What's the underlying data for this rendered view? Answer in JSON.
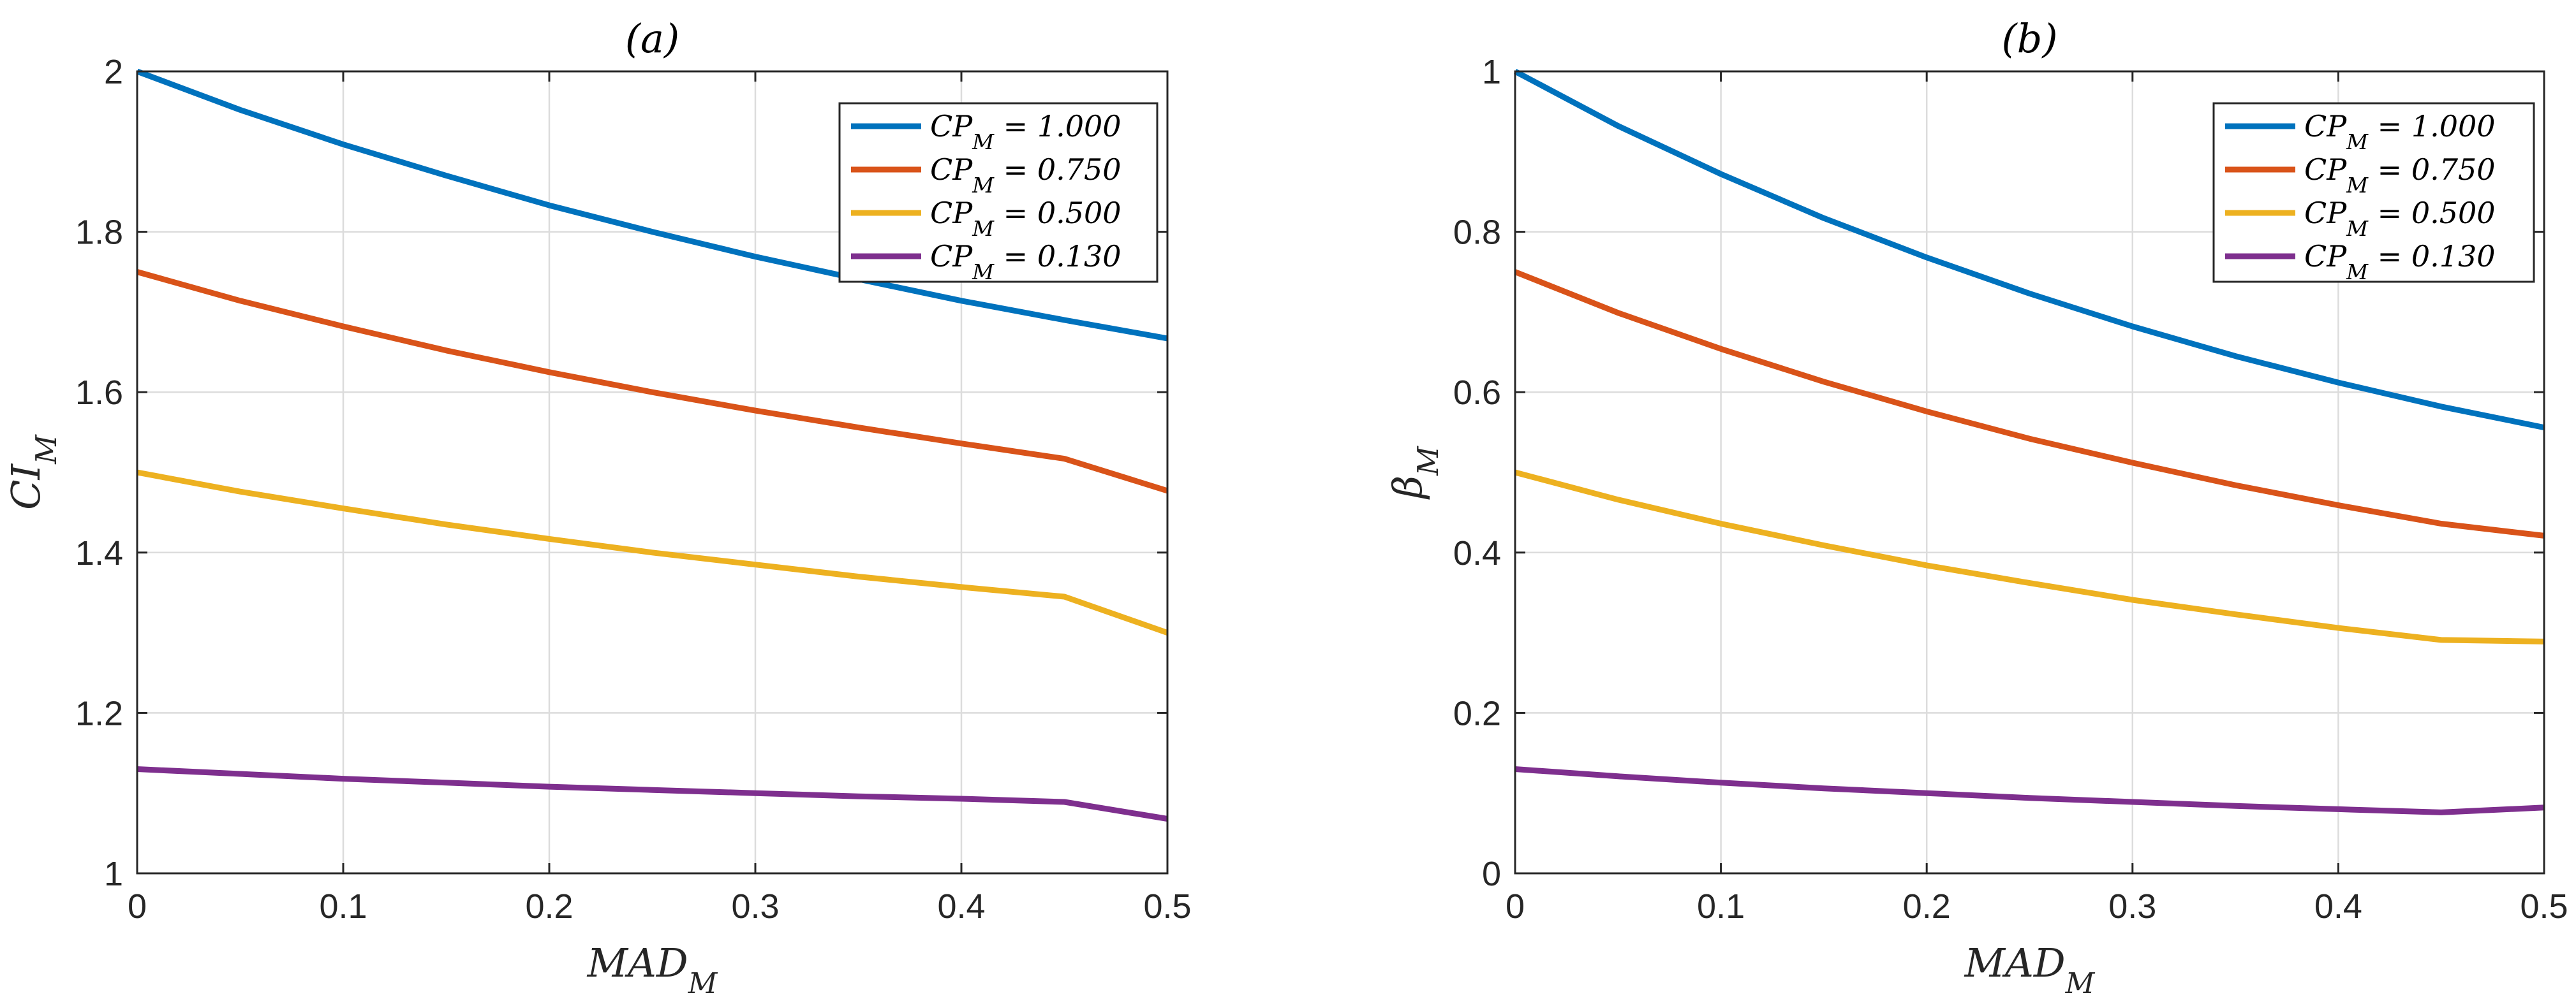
{
  "chart_data": [
    {
      "type": "line",
      "title": "(a)",
      "xlabel": "MAD_M",
      "ylabel": "CI_M",
      "xlim": [
        0,
        0.5
      ],
      "ylim": [
        1,
        2
      ],
      "grid": true,
      "legend_position": "top-right",
      "xticks": [
        "0",
        "0.1",
        "0.2",
        "0.3",
        "0.4",
        "0.5"
      ],
      "yticks": [
        "1",
        "1.2",
        "1.4",
        "1.6",
        "1.8",
        "2"
      ],
      "x": [
        0,
        0.05,
        0.1,
        0.15,
        0.2,
        0.25,
        0.3,
        0.35,
        0.4,
        0.45,
        0.5
      ],
      "series": [
        {
          "name": "CP_M = 1.000",
          "color": "#0072BD",
          "values": [
            2.0,
            1.952,
            1.909,
            1.87,
            1.833,
            1.8,
            1.769,
            1.741,
            1.714,
            1.69,
            1.667
          ]
        },
        {
          "name": "CP_M = 0.750",
          "color": "#D95319",
          "values": [
            1.75,
            1.714,
            1.682,
            1.652,
            1.625,
            1.6,
            1.577,
            1.556,
            1.536,
            1.517,
            1.477
          ]
        },
        {
          "name": "CP_M = 0.500",
          "color": "#EDB120",
          "values": [
            1.5,
            1.476,
            1.455,
            1.435,
            1.417,
            1.4,
            1.385,
            1.37,
            1.357,
            1.345,
            1.3
          ]
        },
        {
          "name": "CP_M = 0.130",
          "color": "#7E2F8E",
          "values": [
            1.13,
            1.124,
            1.118,
            1.113,
            1.108,
            1.104,
            1.1,
            1.096,
            1.093,
            1.089,
            1.068
          ]
        }
      ]
    },
    {
      "type": "line",
      "title": "(b)",
      "xlabel": "MAD_M",
      "ylabel": "β_M",
      "xlim": [
        0,
        0.5
      ],
      "ylim": [
        0,
        1
      ],
      "grid": true,
      "legend_position": "top-right",
      "xticks": [
        "0",
        "0.1",
        "0.2",
        "0.3",
        "0.4",
        "0.5"
      ],
      "yticks": [
        "0",
        "0.2",
        "0.4",
        "0.6",
        "0.8",
        "1"
      ],
      "x": [
        0,
        0.05,
        0.1,
        0.15,
        0.2,
        0.25,
        0.3,
        0.35,
        0.4,
        0.45,
        0.5
      ],
      "series": [
        {
          "name": "CP_M = 1.000",
          "color": "#0072BD",
          "values": [
            1.0,
            0.932,
            0.872,
            0.817,
            0.768,
            0.723,
            0.682,
            0.645,
            0.612,
            0.582,
            0.556
          ]
        },
        {
          "name": "CP_M = 0.750",
          "color": "#D95319",
          "values": [
            0.75,
            0.699,
            0.654,
            0.613,
            0.576,
            0.542,
            0.512,
            0.484,
            0.459,
            0.436,
            0.421
          ]
        },
        {
          "name": "CP_M = 0.500",
          "color": "#EDB120",
          "values": [
            0.5,
            0.466,
            0.436,
            0.409,
            0.384,
            0.362,
            0.341,
            0.323,
            0.306,
            0.291,
            0.289
          ]
        },
        {
          "name": "CP_M = 0.130",
          "color": "#7E2F8E",
          "values": [
            0.13,
            0.121,
            0.113,
            0.106,
            0.1,
            0.094,
            0.089,
            0.084,
            0.08,
            0.076,
            0.082
          ]
        }
      ]
    }
  ]
}
